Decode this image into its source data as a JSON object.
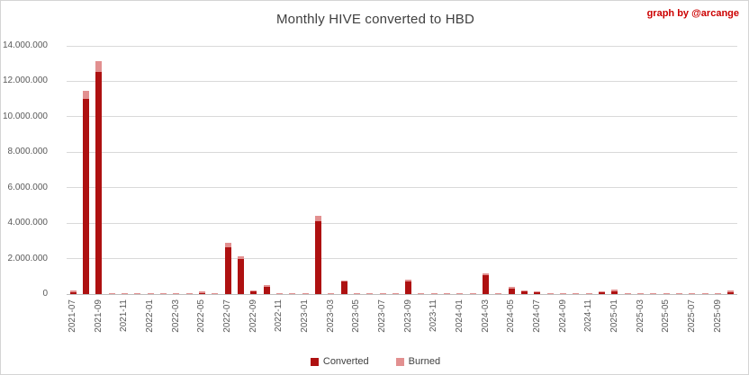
{
  "title": "Monthly HIVE converted to HBD",
  "credit": "graph by @arcange",
  "colors": {
    "converted": "#ae1111",
    "burned": "#e29090",
    "credit_text": "#cc0000",
    "grid": "#d9d9d9",
    "axis": "#bfbfbf",
    "tick_text": "#595959",
    "title_text": "#404040"
  },
  "legend": {
    "converted_label": "Converted",
    "burned_label": "Burned"
  },
  "chart_data": {
    "type": "bar",
    "stacked": true,
    "title": "Monthly HIVE converted to HBD",
    "xlabel": "",
    "ylabel": "",
    "ylim": [
      0,
      14000000
    ],
    "ytick_step": 2000000,
    "ytick_labels": [
      "0",
      "2.000.000",
      "4.000.000",
      "6.000.000",
      "8.000.000",
      "10.000.000",
      "12.000.000",
      "14.000.000"
    ],
    "grid": "horizontal",
    "legend_position": "bottom",
    "xtick_every": 2,
    "categories": [
      "2021-07",
      "2021-08",
      "2021-09",
      "2021-10",
      "2021-11",
      "2021-12",
      "2022-01",
      "2022-02",
      "2022-03",
      "2022-04",
      "2022-05",
      "2022-06",
      "2022-07",
      "2022-08",
      "2022-09",
      "2022-10",
      "2022-11",
      "2022-12",
      "2023-01",
      "2023-02",
      "2023-03",
      "2023-04",
      "2023-05",
      "2023-06",
      "2023-07",
      "2023-08",
      "2023-09",
      "2023-10",
      "2023-11",
      "2023-12",
      "2024-01",
      "2024-02",
      "2024-03",
      "2024-04",
      "2024-05",
      "2024-06",
      "2024-07",
      "2024-08",
      "2024-09",
      "2024-10",
      "2024-11",
      "2024-12",
      "2025-01",
      "2025-02",
      "2025-03",
      "2025-04",
      "2025-05",
      "2025-06",
      "2025-07",
      "2025-08",
      "2025-09",
      "2025-10"
    ],
    "series": [
      {
        "name": "Converted",
        "values": [
          120000,
          11000000,
          12550000,
          0,
          0,
          0,
          0,
          0,
          0,
          0,
          70000,
          0,
          2650000,
          2000000,
          150000,
          420000,
          0,
          0,
          0,
          4100000,
          0,
          700000,
          0,
          0,
          0,
          0,
          720000,
          0,
          0,
          0,
          0,
          0,
          1070000,
          0,
          320000,
          150000,
          80000,
          0,
          0,
          0,
          0,
          100000,
          170000,
          0,
          0,
          0,
          0,
          0,
          0,
          0,
          0,
          120000
        ]
      },
      {
        "name": "Burned",
        "values": [
          50000,
          480000,
          600000,
          30000,
          30000,
          30000,
          30000,
          30000,
          30000,
          30000,
          30000,
          30000,
          250000,
          150000,
          30000,
          50000,
          30000,
          30000,
          30000,
          300000,
          30000,
          80000,
          30000,
          30000,
          30000,
          30000,
          50000,
          30000,
          30000,
          30000,
          30000,
          30000,
          120000,
          40000,
          60000,
          30000,
          20000,
          30000,
          30000,
          30000,
          30000,
          20000,
          30000,
          30000,
          30000,
          30000,
          30000,
          30000,
          30000,
          30000,
          30000,
          20000
        ]
      }
    ]
  }
}
